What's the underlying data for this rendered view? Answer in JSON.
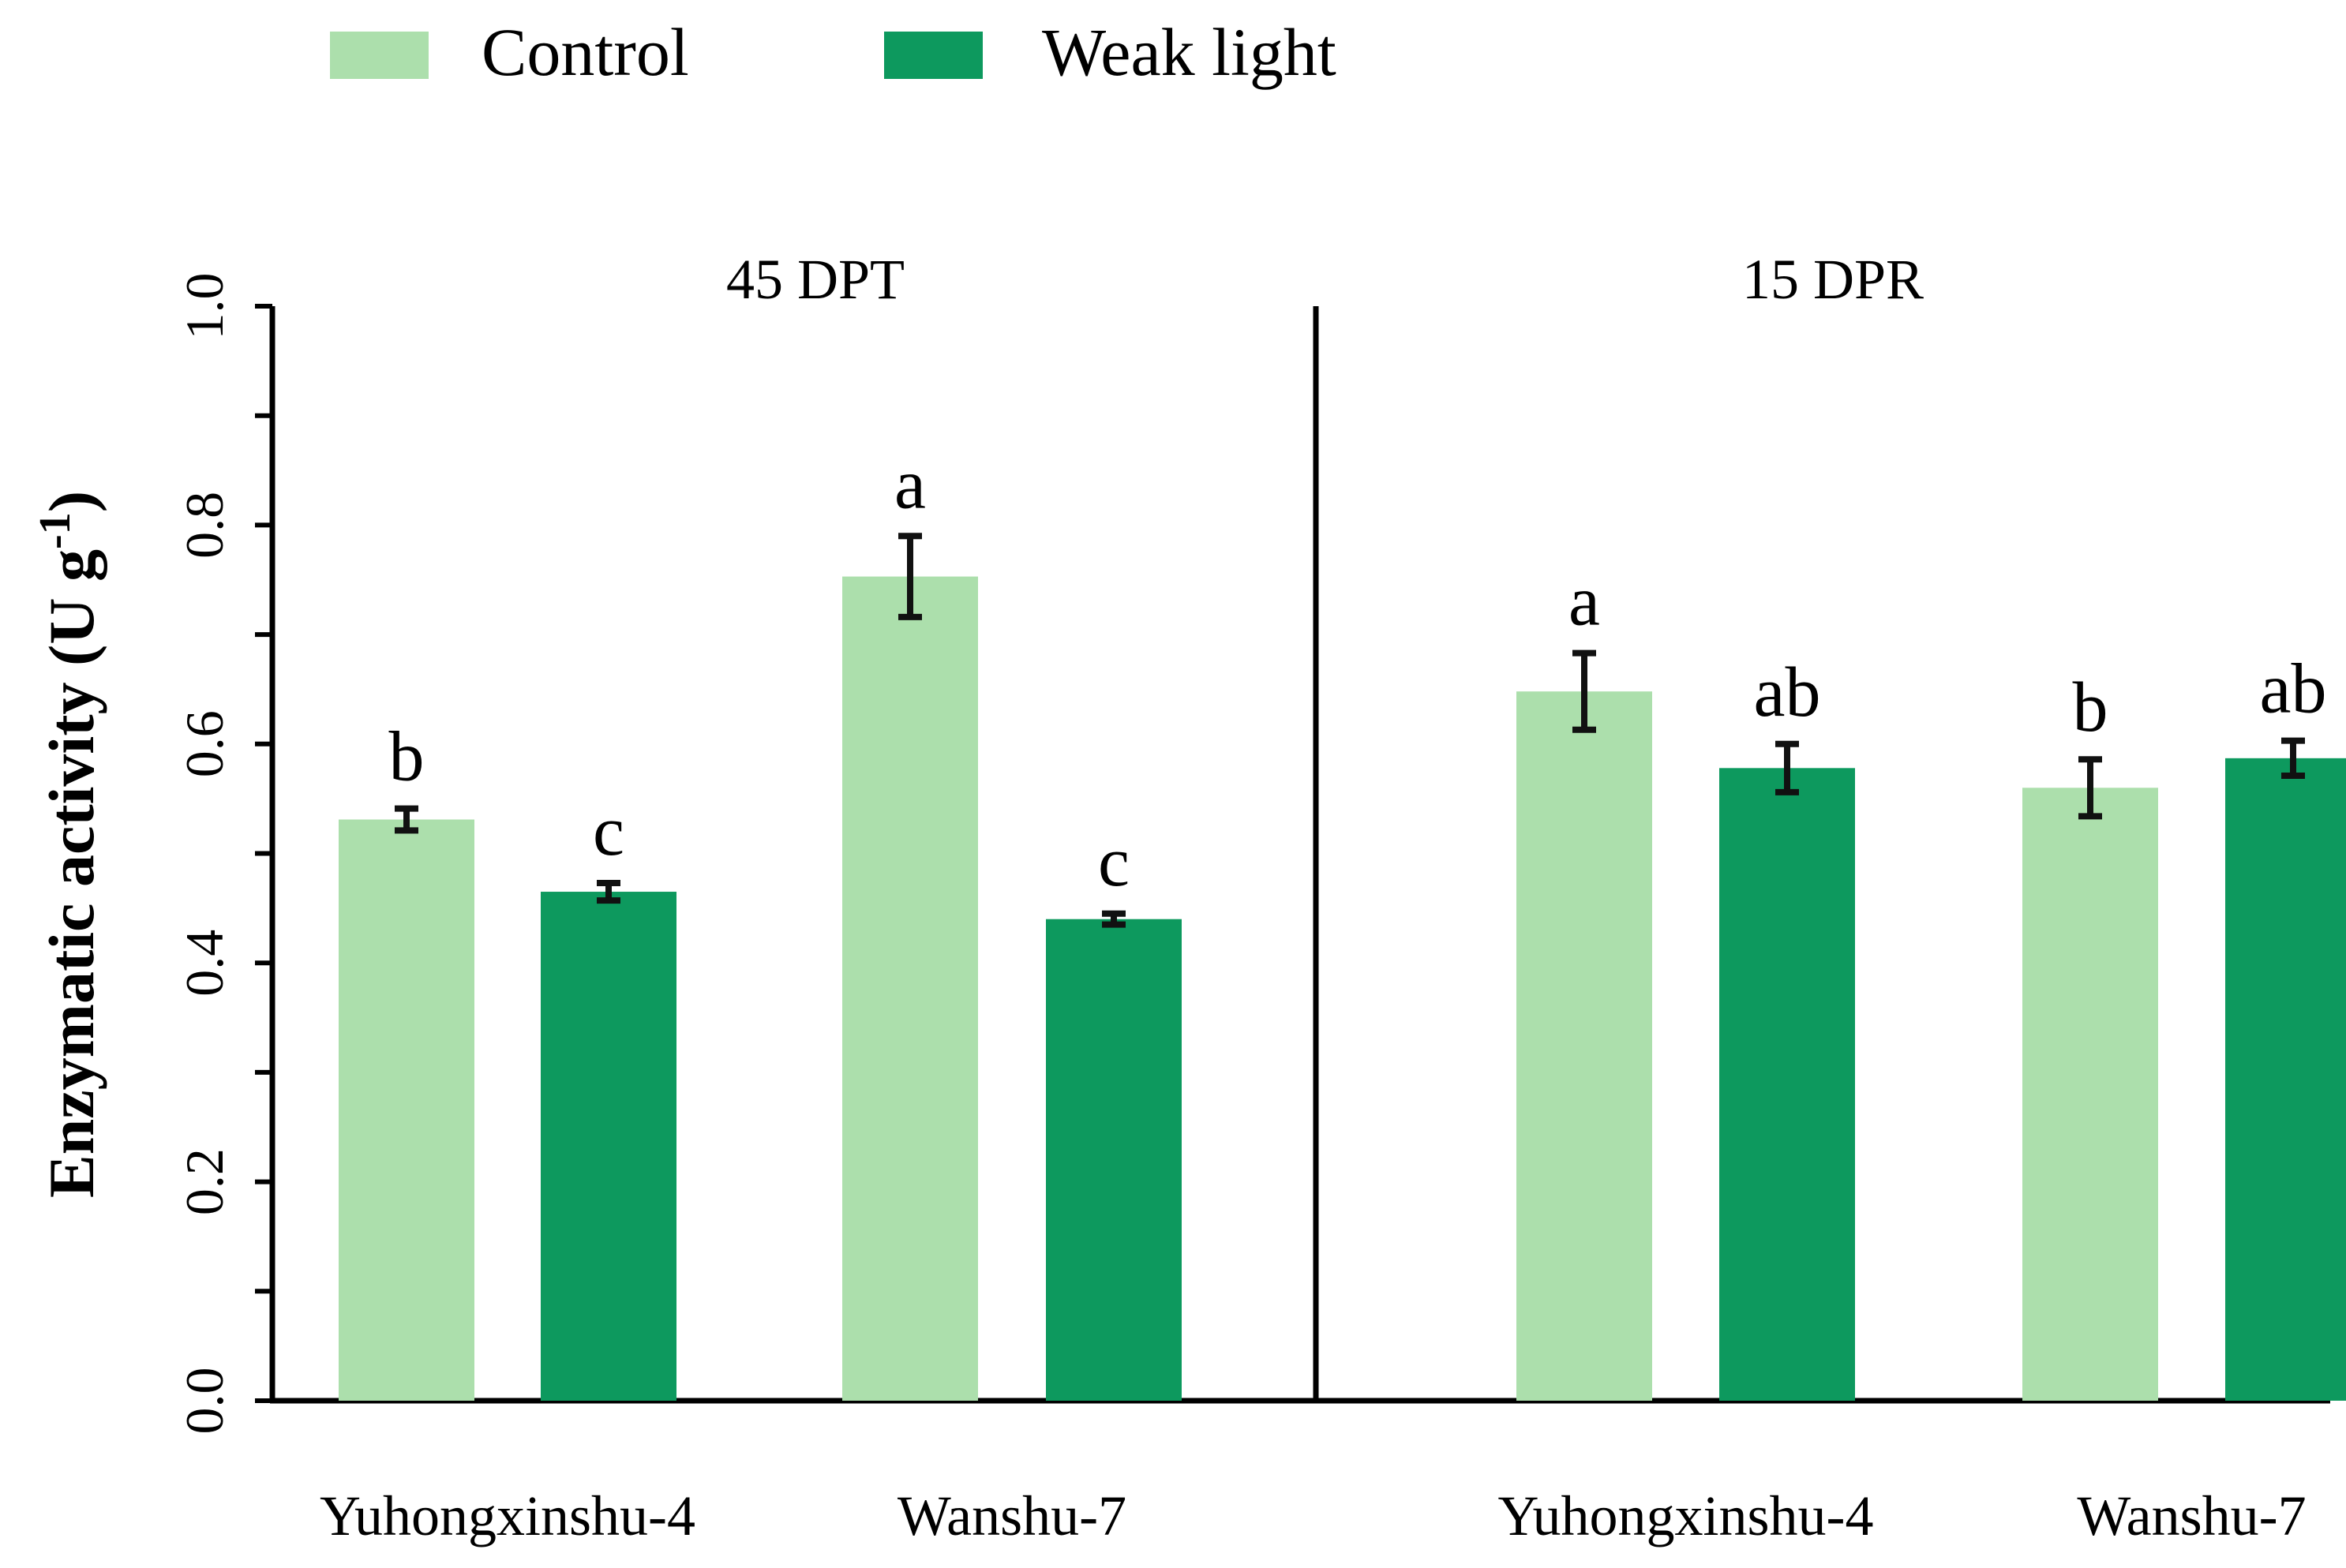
{
  "colors": {
    "control": "#acdfac",
    "weak_light": "#0d995e",
    "axis": "#000000",
    "error": "#111111"
  },
  "chart_data": {
    "type": "bar",
    "ylabel": "Enzymatic activity (U g",
    "ylabel_superscript": "-1",
    "ylabel_close": ")",
    "ylim": [
      0,
      1.0
    ],
    "yticks": [
      "0.0",
      "0.2",
      "0.4",
      "0.6",
      "0.8",
      "1.0"
    ],
    "legend": [
      {
        "name": "Control",
        "color": "#acdfac"
      },
      {
        "name": "Weak light",
        "color": "#0d995e"
      }
    ],
    "panels": [
      {
        "title": "45 DPT",
        "categories": [
          "Yuhongxinshu-4",
          "Wanshu-7"
        ],
        "series": [
          {
            "name": "Control",
            "values": [
              0.531,
              0.753
            ],
            "errors": [
              0.01,
              0.037
            ],
            "letters": [
              "b",
              "a"
            ]
          },
          {
            "name": "Weak light",
            "values": [
              0.465,
              0.44
            ],
            "errors": [
              0.008,
              0.005
            ],
            "letters": [
              "c",
              "c"
            ]
          }
        ]
      },
      {
        "title": "15 DPR",
        "categories": [
          "Yuhongxinshu-4",
          "Wanshu-7"
        ],
        "series": [
          {
            "name": "Control",
            "values": [
              0.648,
              0.56
            ],
            "errors": [
              0.035,
              0.026
            ],
            "letters": [
              "a",
              "b"
            ]
          },
          {
            "name": "Weak light",
            "values": [
              0.578,
              0.587
            ],
            "errors": [
              0.022,
              0.016
            ],
            "letters": [
              "ab",
              "ab"
            ]
          }
        ]
      }
    ]
  }
}
